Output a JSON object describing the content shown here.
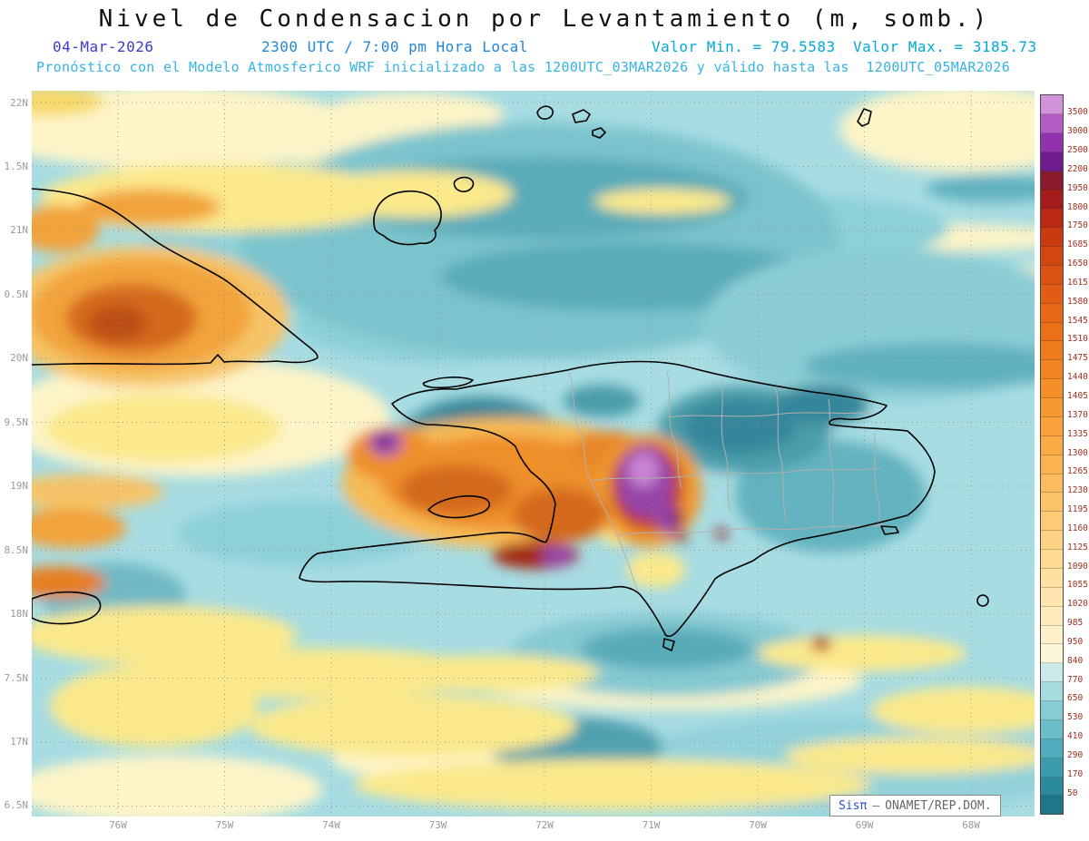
{
  "title": "Nivel de Condensacion por Levantamiento (m, somb.)",
  "header": {
    "date": "04-Mar-2026",
    "local_time": "2300 UTC / 7:00 pm Hora Local",
    "valor_min": "Valor Min. = 79.5583",
    "valor_max": "Valor Max. = 3185.73",
    "forecast": "Pronóstico con el Modelo Atmosferico WRF inicializado a las 1200UTC_03MAR2026 y válido hasta las  1200UTC_05MAR2026"
  },
  "axes": {
    "lat_labels": [
      "22N",
      "1.5N",
      "21N",
      "0.5N",
      "20N",
      "9.5N",
      "19N",
      "8.5N",
      "18N",
      "7.5N",
      "17N",
      "6.5N"
    ],
    "lon_labels": [
      "76W",
      "75W",
      "74W",
      "73W",
      "72W",
      "71W",
      "70W",
      "69W",
      "68W"
    ]
  },
  "colorbar": {
    "labels": [
      "3500",
      "3000",
      "2500",
      "2200",
      "1950",
      "1800",
      "1750",
      "1685",
      "1650",
      "1615",
      "1580",
      "1545",
      "1510",
      "1475",
      "1440",
      "1405",
      "1370",
      "1335",
      "1300",
      "1265",
      "1230",
      "1195",
      "1160",
      "1125",
      "1090",
      "1055",
      "1020",
      "985",
      "950",
      "840",
      "770",
      "650",
      "530",
      "410",
      "290",
      "170",
      "50"
    ],
    "colors": [
      "#d292dc",
      "#b45cc6",
      "#9232ae",
      "#6d1d8e",
      "#8a1b2e",
      "#a51c1c",
      "#bb2914",
      "#c93a10",
      "#d24710",
      "#d95212",
      "#e05d13",
      "#e66715",
      "#eb7118",
      "#ef7b1c",
      "#f28522",
      "#f58f29",
      "#f79831",
      "#f9a13a",
      "#faaa45",
      "#fbb350",
      "#fcbb5c",
      "#fcc369",
      "#fdcb76",
      "#fdd284",
      "#fdd992",
      "#fee0a0",
      "#fee6ae",
      "#feebbc",
      "#fef0c9",
      "#fdf6d8",
      "#c9e9eb",
      "#a6dbe0",
      "#87ccd4",
      "#6abdc9",
      "#50adbd",
      "#3c9cae",
      "#2b8a9d",
      "#1d768a"
    ]
  },
  "watermark": {
    "brand": "Sisπ",
    "separator": "–",
    "org": "ONAMET/REP.DOM."
  }
}
